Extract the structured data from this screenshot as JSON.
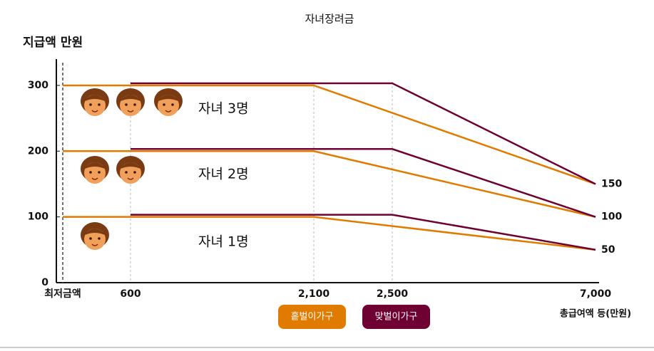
{
  "chart_data": {
    "type": "line",
    "title": "자녀장려금",
    "y_label": "지급액 만원",
    "x_label": "총급여액 등(만원)",
    "categories": [
      "최저금액",
      "600",
      "2,100",
      "2,500",
      "7,000"
    ],
    "ylim": [
      0,
      340
    ],
    "yticks": [
      0,
      100,
      200,
      300
    ],
    "legend": [
      {
        "name": "홑벌이가구",
        "color": "#e07b00"
      },
      {
        "name": "맞벌이가구",
        "color": "#6e0032"
      }
    ],
    "groups": [
      {
        "label": "자녀 3명",
        "lines": [
          {
            "x": [
              "최저금액",
              "2,100",
              "7,000"
            ],
            "values": [
              300,
              300,
              150
            ]
          },
          {
            "x": [
              "600",
              "2,500",
              "7,000"
            ],
            "values": [
              300,
              300,
              150
            ]
          }
        ]
      },
      {
        "label": "자녀 2명",
        "lines": [
          {
            "x": [
              "최저금액",
              "2,100",
              "7,000"
            ],
            "values": [
              200,
              200,
              100
            ]
          },
          {
            "x": [
              "600",
              "2,500",
              "7,000"
            ],
            "values": [
              200,
              200,
              100
            ]
          }
        ]
      },
      {
        "label": "자녀 1명",
        "lines": [
          {
            "x": [
              "최저금액",
              "2,100",
              "7,000"
            ],
            "values": [
              100,
              100,
              50
            ]
          },
          {
            "x": [
              "600",
              "2,500",
              "7,000"
            ],
            "values": [
              100,
              100,
              50
            ]
          }
        ]
      }
    ]
  }
}
